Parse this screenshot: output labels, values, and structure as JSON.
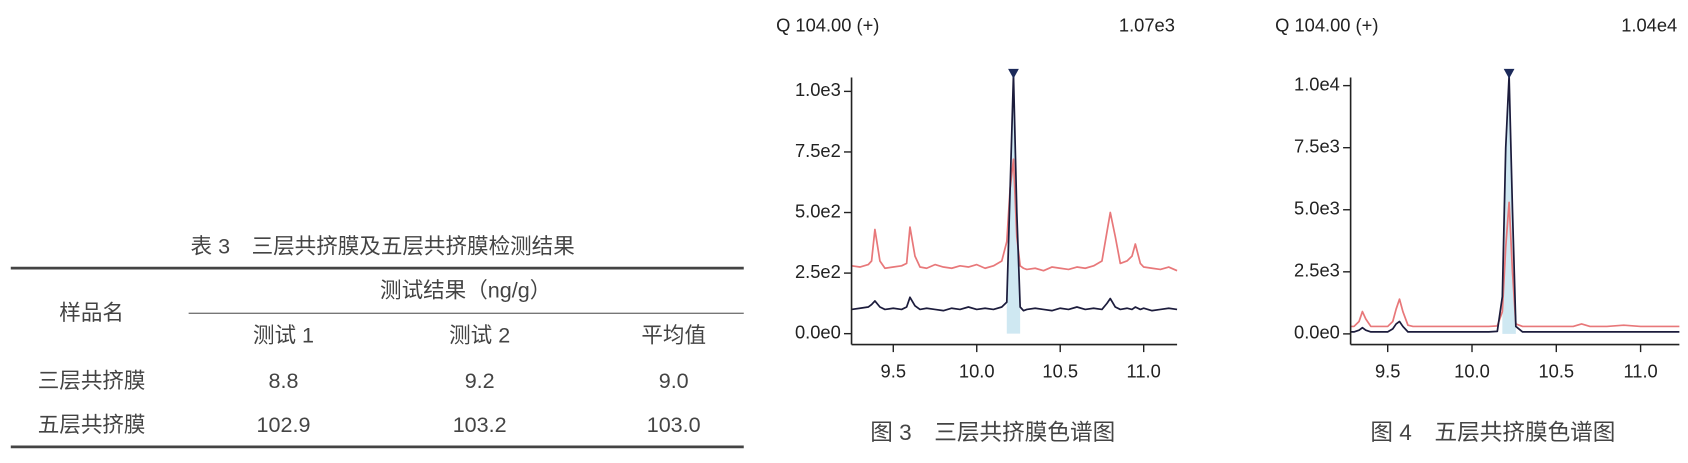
{
  "table": {
    "caption": "表 3　三层共挤膜及五层共挤膜检测结果",
    "header": [
      "样品名",
      "测试结果（ng/g）"
    ],
    "subheader": [
      "测试 1",
      "测试 2",
      "平均值"
    ],
    "rows": [
      [
        "三层共挤膜",
        "8.8",
        "9.2",
        "9.0"
      ],
      [
        "五层共挤膜",
        "102.9",
        "103.2",
        "103.0"
      ]
    ]
  },
  "chart_data": [
    {
      "type": "line",
      "title": "Q 104.00 (+)",
      "annotation": "1.07e3",
      "caption": "图 3　三层共挤膜色谱图",
      "x": [
        9.25,
        9.3,
        9.35,
        9.37,
        9.39,
        9.42,
        9.45,
        9.5,
        9.55,
        9.58,
        9.6,
        9.63,
        9.66,
        9.7,
        9.75,
        9.8,
        9.85,
        9.9,
        9.95,
        10.0,
        10.05,
        10.1,
        10.15,
        10.18,
        10.2,
        10.22,
        10.24,
        10.26,
        10.28,
        10.3,
        10.35,
        10.4,
        10.45,
        10.5,
        10.55,
        10.6,
        10.65,
        10.7,
        10.75,
        10.78,
        10.8,
        10.83,
        10.86,
        10.9,
        10.93,
        10.95,
        10.98,
        11.0,
        11.05,
        11.1,
        11.15,
        11.2
      ],
      "series": [
        {
          "color": "#e8787a",
          "values": [
            280,
            275,
            285,
            300,
            430,
            300,
            270,
            275,
            280,
            290,
            440,
            320,
            275,
            270,
            285,
            275,
            270,
            280,
            275,
            285,
            270,
            280,
            300,
            380,
            600,
            720,
            400,
            280,
            270,
            265,
            270,
            260,
            275,
            270,
            265,
            275,
            270,
            280,
            300,
            420,
            500,
            400,
            290,
            300,
            320,
            370,
            290,
            275,
            270,
            265,
            275,
            260
          ]
        },
        {
          "color": "#1c1c3c",
          "values": [
            100,
            105,
            110,
            120,
            135,
            110,
            100,
            105,
            100,
            110,
            150,
            115,
            100,
            105,
            100,
            95,
            105,
            100,
            110,
            100,
            105,
            100,
            110,
            130,
            600,
            1070,
            500,
            110,
            95,
            100,
            105,
            100,
            95,
            105,
            100,
            110,
            100,
            105,
            100,
            125,
            145,
            110,
            100,
            105,
            100,
            110,
            100,
            105,
            95,
            100,
            105,
            100
          ]
        }
      ],
      "xlim": [
        9.25,
        11.2
      ],
      "ylim": [
        -45,
        1075
      ],
      "xticks": [
        9.5,
        {
          "value": 10,
          "label": "10.0"
        },
        10.5,
        {
          "value": 11,
          "label": "11.0"
        }
      ],
      "yticks": [
        {
          "value": 0,
          "label": "0.0e0"
        },
        {
          "value": 250,
          "label": "2.5e2"
        },
        {
          "value": 500,
          "label": "5.0e2"
        },
        {
          "value": 750,
          "label": "7.5e2"
        },
        {
          "value": 1000,
          "label": "1.0e3"
        }
      ]
    },
    {
      "type": "line",
      "title": "Q 104.00 (+)",
      "annotation": "1.04e4",
      "caption": "图 4　五层共挤膜色谱图",
      "x": [
        9.28,
        9.3,
        9.33,
        9.35,
        9.37,
        9.4,
        9.45,
        9.5,
        9.53,
        9.55,
        9.57,
        9.59,
        9.62,
        9.65,
        9.7,
        9.8,
        9.9,
        10.0,
        10.1,
        10.15,
        10.18,
        10.2,
        10.22,
        10.24,
        10.26,
        10.3,
        10.4,
        10.5,
        10.6,
        10.65,
        10.7,
        10.8,
        10.9,
        11.0,
        11.1,
        11.23
      ],
      "series": [
        {
          "color": "#e8787a",
          "values": [
            300,
            300,
            500,
            900,
            600,
            300,
            300,
            300,
            500,
            1000,
            1400,
            900,
            350,
            300,
            300,
            300,
            300,
            300,
            300,
            320,
            900,
            3500,
            5300,
            2500,
            400,
            300,
            300,
            300,
            300,
            400,
            300,
            300,
            350,
            300,
            300,
            300
          ]
        },
        {
          "color": "#1c1c3c",
          "values": [
            80,
            80,
            150,
            250,
            150,
            80,
            80,
            80,
            200,
            400,
            500,
            300,
            80,
            80,
            80,
            80,
            80,
            80,
            80,
            100,
            1500,
            7500,
            10400,
            5000,
            300,
            80,
            80,
            80,
            80,
            80,
            80,
            80,
            80,
            80,
            80,
            80
          ]
        }
      ],
      "xlim": [
        9.28,
        11.23
      ],
      "ylim": [
        -430,
        10500
      ],
      "xticks": [
        9.5,
        {
          "value": 10,
          "label": "10.0"
        },
        10.5,
        {
          "value": 11,
          "label": "11.0"
        }
      ],
      "yticks": [
        {
          "value": 0,
          "label": "0.0e0"
        },
        {
          "value": 2500,
          "label": "2.5e3"
        },
        {
          "value": 5000,
          "label": "5.0e3"
        },
        {
          "value": 7500,
          "label": "7.5e3"
        },
        {
          "value": 10000,
          "label": "1.0e4"
        }
      ]
    }
  ]
}
